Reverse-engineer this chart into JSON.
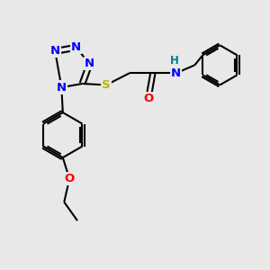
{
  "bg_color": "#e8e8e8",
  "bond_color": "#000000",
  "N_color": "#0000ff",
  "O_color": "#ff0000",
  "S_color": "#b8b800",
  "H_color": "#008080",
  "line_width": 1.5,
  "font_size_atom": 9.5,
  "figsize": [
    3.0,
    3.0
  ],
  "dpi": 100,
  "xlim": [
    0,
    10
  ],
  "ylim": [
    0,
    10
  ]
}
